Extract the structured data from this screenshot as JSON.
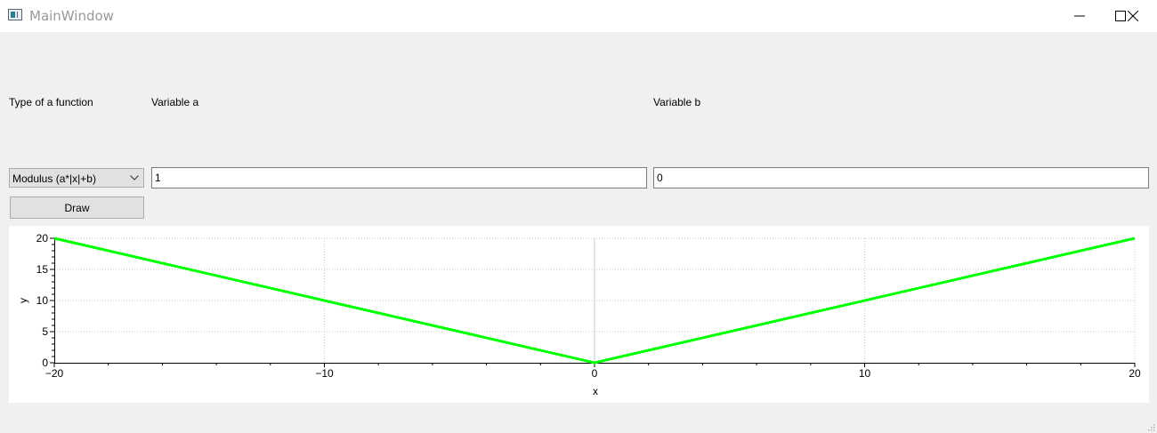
{
  "window": {
    "title": "MainWindow",
    "controls": [
      "minimize-icon",
      "maximize-icon",
      "close-icon"
    ]
  },
  "labels": {
    "function_type": "Type of a function",
    "variable_a": "Variable a",
    "variable_b": "Variable b"
  },
  "function_select": {
    "selected": "Modulus (a*|x|+b)"
  },
  "inputs": {
    "a": "1",
    "b": "0"
  },
  "draw_button": {
    "label": "Draw"
  },
  "colors": {
    "curve": "#00ff00",
    "grid": "#c8c8c8",
    "axis": "#000000",
    "window_bg": "#f0f0f0"
  },
  "chart_data": {
    "type": "line",
    "title": "",
    "xlabel": "x",
    "ylabel": "y",
    "xlim": [
      -20,
      20
    ],
    "ylim": [
      0,
      20
    ],
    "x_ticks": [
      -20,
      -10,
      0,
      10,
      20
    ],
    "x_tick_labels": [
      "−20",
      "−10",
      "0",
      "10",
      "20"
    ],
    "y_ticks": [
      0,
      5,
      10,
      15,
      20
    ],
    "y_tick_labels": [
      "0",
      "5",
      "10",
      "15",
      "20"
    ],
    "grid": true,
    "series": [
      {
        "x": [
          -20,
          0,
          20
        ],
        "y": [
          20,
          0,
          20
        ]
      }
    ]
  }
}
